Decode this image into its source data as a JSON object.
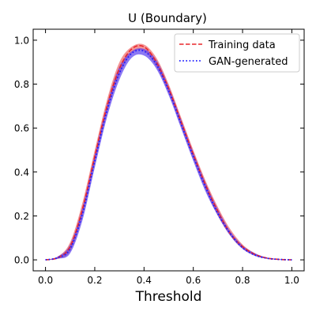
{
  "chart_data": {
    "type": "line",
    "title": "U (Boundary)",
    "xlabel": "Threshold",
    "ylabel": "",
    "xlim": [
      -0.05,
      1.05
    ],
    "ylim": [
      -0.05,
      1.05
    ],
    "x_ticks": [
      0.0,
      0.2,
      0.4,
      0.6,
      0.8,
      1.0
    ],
    "y_ticks": [
      0.0,
      0.2,
      0.4,
      0.6,
      0.8,
      1.0
    ],
    "x_tick_labels": [
      "0.0",
      "0.2",
      "0.4",
      "0.6",
      "0.8",
      "1.0"
    ],
    "y_tick_labels": [
      "0.0",
      "0.2",
      "0.4",
      "0.6",
      "0.8",
      "1.0"
    ],
    "grid": false,
    "legend_position": "top-right",
    "x": [
      0.0,
      0.05,
      0.1,
      0.15,
      0.2,
      0.25,
      0.3,
      0.35,
      0.4,
      0.45,
      0.5,
      0.55,
      0.6,
      0.65,
      0.7,
      0.75,
      0.8,
      0.85,
      0.9,
      0.95,
      1.0
    ],
    "series": [
      {
        "name": "Training data",
        "style": "dashed",
        "color": "#e8262a",
        "band_color": "#f07070",
        "values": [
          0.0,
          0.01,
          0.06,
          0.23,
          0.47,
          0.7,
          0.87,
          0.96,
          0.97,
          0.9,
          0.78,
          0.63,
          0.48,
          0.34,
          0.22,
          0.12,
          0.06,
          0.025,
          0.008,
          0.002,
          0.0
        ],
        "band_lower": [
          0.0,
          0.005,
          0.04,
          0.2,
          0.44,
          0.67,
          0.84,
          0.94,
          0.95,
          0.88,
          0.76,
          0.61,
          0.46,
          0.32,
          0.2,
          0.11,
          0.05,
          0.02,
          0.005,
          0.001,
          0.0
        ],
        "band_upper": [
          0.0,
          0.015,
          0.08,
          0.26,
          0.5,
          0.73,
          0.9,
          0.97,
          0.98,
          0.92,
          0.8,
          0.65,
          0.5,
          0.36,
          0.24,
          0.14,
          0.07,
          0.03,
          0.01,
          0.003,
          0.0
        ]
      },
      {
        "name": "GAN-generated",
        "style": "dotted",
        "color": "#1a1aff",
        "band_color": "#5a3ef0",
        "values": [
          0.0,
          0.01,
          0.05,
          0.21,
          0.45,
          0.68,
          0.85,
          0.94,
          0.95,
          0.89,
          0.77,
          0.62,
          0.47,
          0.33,
          0.21,
          0.12,
          0.055,
          0.022,
          0.007,
          0.002,
          0.0
        ],
        "band_lower": [
          0.0,
          0.005,
          0.03,
          0.18,
          0.42,
          0.65,
          0.82,
          0.92,
          0.93,
          0.87,
          0.75,
          0.6,
          0.45,
          0.31,
          0.2,
          0.11,
          0.05,
          0.018,
          0.005,
          0.001,
          0.0
        ],
        "band_upper": [
          0.0,
          0.015,
          0.07,
          0.24,
          0.48,
          0.71,
          0.88,
          0.95,
          0.96,
          0.91,
          0.79,
          0.64,
          0.49,
          0.35,
          0.23,
          0.13,
          0.065,
          0.03,
          0.01,
          0.003,
          0.0
        ]
      }
    ]
  }
}
